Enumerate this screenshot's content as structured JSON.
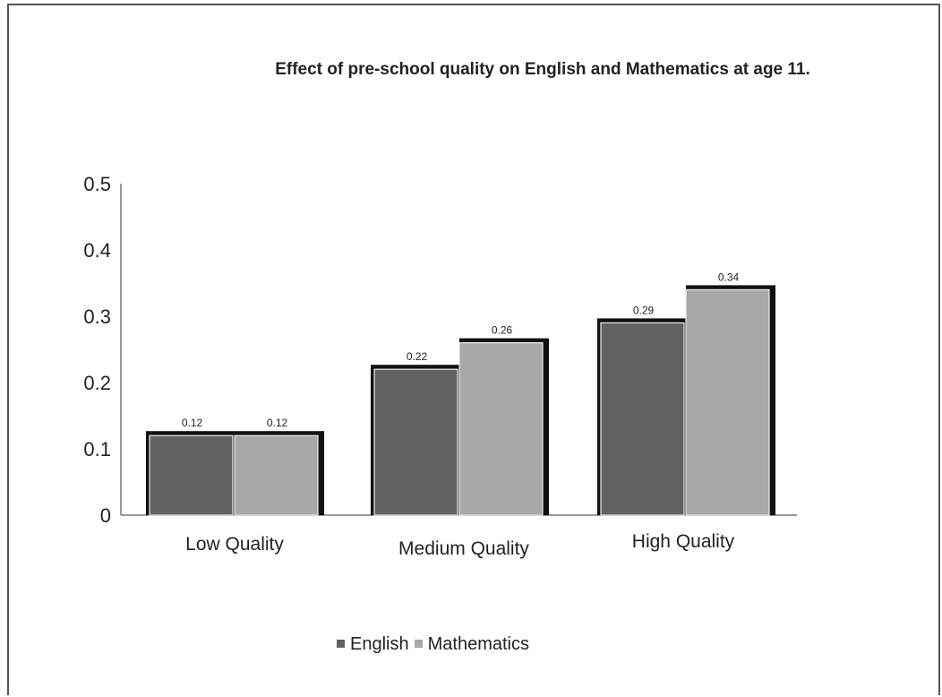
{
  "chart_data": {
    "type": "bar",
    "title": "Effect of pre-school quality on English and Mathematics at age 11.",
    "xlabel": "",
    "ylabel": "",
    "categories": [
      "Low Quality",
      "Medium Quality",
      "High Quality"
    ],
    "series": [
      {
        "name": "English",
        "values": [
          0.12,
          0.22,
          0.29
        ],
        "labels": [
          "0.12",
          "0.22",
          "0.29"
        ],
        "color": "#626262"
      },
      {
        "name": "Mathematics",
        "values": [
          0.12,
          0.26,
          0.34
        ],
        "labels": [
          "0.12",
          "0.26",
          "0.34"
        ],
        "color": "#a8a8a8"
      }
    ],
    "yticks": [
      "0",
      "0.1",
      "0.2",
      "0.3",
      "0.4",
      "0.5"
    ],
    "ylim": [
      0,
      0.5
    ],
    "grid": false,
    "legend": "bottom",
    "bar_outline_color": "#111111"
  }
}
